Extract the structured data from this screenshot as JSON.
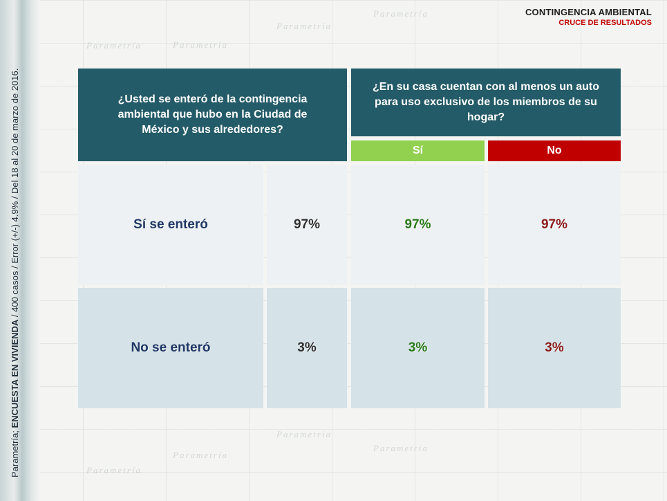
{
  "header": {
    "title": "CONTINGENCIA AMBIENTAL",
    "subtitle": "CRUCE DE RESULTADOS"
  },
  "side_caption": {
    "prefix": "Parametría; ",
    "bold": "ENCUESTA EN VIVIENDA",
    "rest": " /  400 casos / Error (+/-) 4.9% / Del 18 al 20 de marzo de 2016."
  },
  "watermark_text": "Parametría",
  "table": {
    "question_left": "¿Usted se enteró de la contingencia ambiental que hubo en la Ciudad de México y sus alrededores?",
    "question_right": "¿En su casa cuentan con al menos un auto para uso exclusivo de los miembros de su hogar?",
    "col_yes": "Sí",
    "col_no": "No",
    "rows": [
      {
        "label": "Sí se enteró",
        "total": "97%",
        "yes": "97%",
        "no": "97%"
      },
      {
        "label": "No se enteró",
        "total": "3%",
        "yes": "3%",
        "no": "3%"
      }
    ]
  },
  "colors": {
    "header_bg": "#245b68",
    "yes_bg": "#92d050",
    "no_bg": "#c00000",
    "row1_bg": "#eef1f3",
    "row2_bg": "#d5e2e7"
  }
}
